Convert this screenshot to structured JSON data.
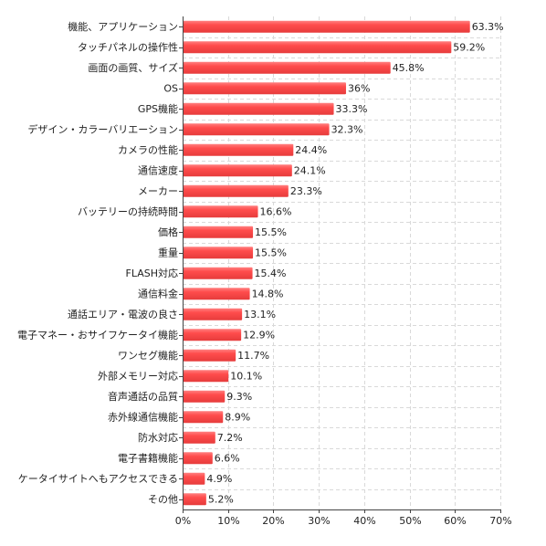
{
  "chart_data": {
    "type": "bar",
    "orientation": "horizontal",
    "categories": [
      "機能、アプリケーション",
      "タッチパネルの操作性",
      "画面の画質、サイズ",
      "OS",
      "GPS機能",
      "デザイン・カラーバリエーション",
      "カメラの性能",
      "通信速度",
      "メーカー",
      "バッテリーの持続時間",
      "価格",
      "重量",
      "FLASH対応",
      "通信料金",
      "通話エリア・電波の良さ",
      "電子マネー・おサイフケータイ機能",
      "ワンセグ機能",
      "外部メモリー対応",
      "音声通話の品質",
      "赤外線通信機能",
      "防水対応",
      "電子書籍機能",
      "ケータイサイトへもアクセスできる",
      "その他"
    ],
    "values": [
      63.3,
      59.2,
      45.8,
      36,
      33.3,
      32.3,
      24.4,
      24.1,
      23.3,
      16.6,
      15.5,
      15.5,
      15.4,
      14.8,
      13.1,
      12.9,
      11.7,
      10.1,
      9.3,
      8.9,
      7.2,
      6.6,
      4.9,
      5.2
    ],
    "value_labels": [
      "63.3%",
      "59.2%",
      "45.8%",
      "36%",
      "33.3%",
      "32.3%",
      "24.4%",
      "24.1%",
      "23.3%",
      "16.6%",
      "15.5%",
      "15.5%",
      "15.4%",
      "14.8%",
      "13.1%",
      "12.9%",
      "11.7%",
      "10.1%",
      "9.3%",
      "8.9%",
      "7.2%",
      "6.6%",
      "4.9%",
      "5.2%"
    ],
    "xlim": [
      0,
      70
    ],
    "x_ticks": [
      0,
      10,
      20,
      30,
      40,
      50,
      60,
      70
    ],
    "x_tick_labels": [
      "0%",
      "10%",
      "20%",
      "30%",
      "40%",
      "50%",
      "60%",
      "70%"
    ],
    "grid": true,
    "bar_color": "#ff4c4c",
    "title": "",
    "xlabel": "",
    "ylabel": ""
  }
}
